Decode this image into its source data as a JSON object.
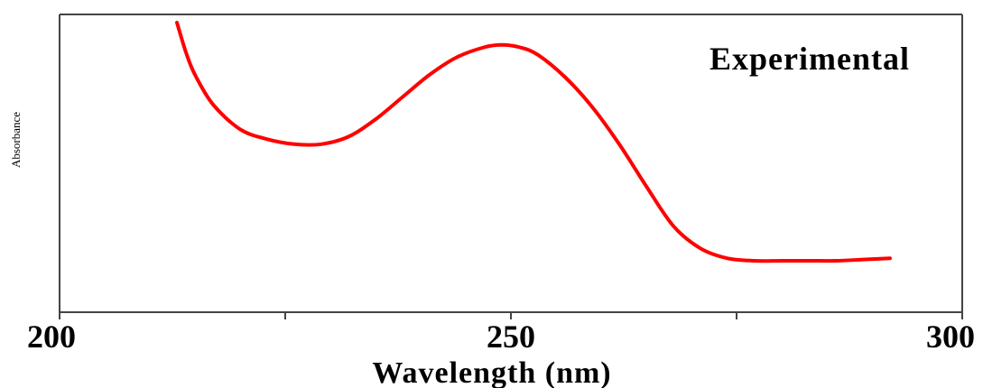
{
  "chart_data": {
    "type": "line",
    "title": "",
    "xlabel": "Wavelength (nm)",
    "ylabel": "Absorbance",
    "xlim": [
      200,
      300
    ],
    "ylim": [
      0,
      1
    ],
    "x_tick_labels": [
      "200",
      "250",
      "300"
    ],
    "x_ticks_major": [
      200,
      250,
      300
    ],
    "x_ticks_minor": [
      225,
      275
    ],
    "y_ticks_shown": false,
    "grid": false,
    "legend": "none",
    "annotation": "Experimental",
    "series": [
      {
        "color": "#ff0000",
        "x": [
          213,
          214,
          215,
          217,
          220,
          223,
          226,
          229,
          232,
          235,
          238,
          241,
          244,
          247,
          249,
          251,
          253,
          256,
          259,
          262,
          265,
          268,
          271,
          274,
          277,
          280,
          283,
          286,
          289,
          292
        ],
        "y": [
          1.0,
          0.88,
          0.79,
          0.67,
          0.57,
          0.53,
          0.51,
          0.51,
          0.54,
          0.61,
          0.7,
          0.79,
          0.86,
          0.9,
          0.91,
          0.9,
          0.87,
          0.78,
          0.66,
          0.51,
          0.34,
          0.18,
          0.09,
          0.05,
          0.04,
          0.04,
          0.04,
          0.04,
          0.045,
          0.05
        ]
      }
    ]
  }
}
